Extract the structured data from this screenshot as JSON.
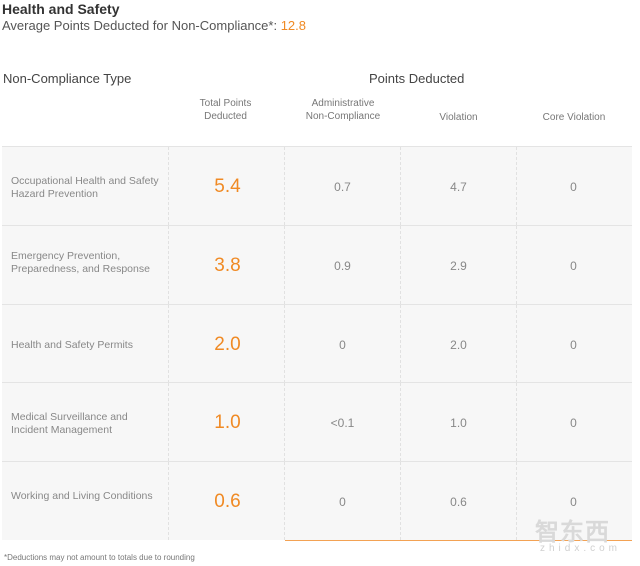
{
  "header": {
    "title": "Health and Safety",
    "subtitle_prefix": "Average Points Deducted for Non-Compliance*: ",
    "average_value": "12.8"
  },
  "table": {
    "type_header": "Non-Compliance Type",
    "points_header": "Points Deducted",
    "columns": {
      "total": "Total Points\nDeducted",
      "administrative": "Administrative\nNon-Compliance",
      "violation": "Violation",
      "core": "Core Violation"
    },
    "rows": [
      {
        "name": "Occupational Health and Safety Hazard Prevention",
        "total": "5.4",
        "administrative": "0.7",
        "violation": "4.7",
        "core": "0"
      },
      {
        "name": "Emergency Prevention, Preparedness, and Response",
        "total": "3.8",
        "administrative": "0.9",
        "violation": "2.9",
        "core": "0"
      },
      {
        "name": "Health and Safety Permits",
        "total": "2.0",
        "administrative": "0",
        "violation": "2.0",
        "core": "0"
      },
      {
        "name": "Medical Surveillance and Incident Management",
        "total": "1.0",
        "administrative": "<0.1",
        "violation": "1.0",
        "core": "0"
      },
      {
        "name": "Working and Living Conditions",
        "total": "0.6",
        "administrative": "0",
        "violation": "0.6",
        "core": "0"
      }
    ]
  },
  "footnote": "*Deductions may not amount to totals due to rounding",
  "watermark": {
    "main": "智东西",
    "sub": "zhidx.com"
  },
  "colors": {
    "accent": "#f08a24",
    "row_bg": "#f7f7f7"
  }
}
